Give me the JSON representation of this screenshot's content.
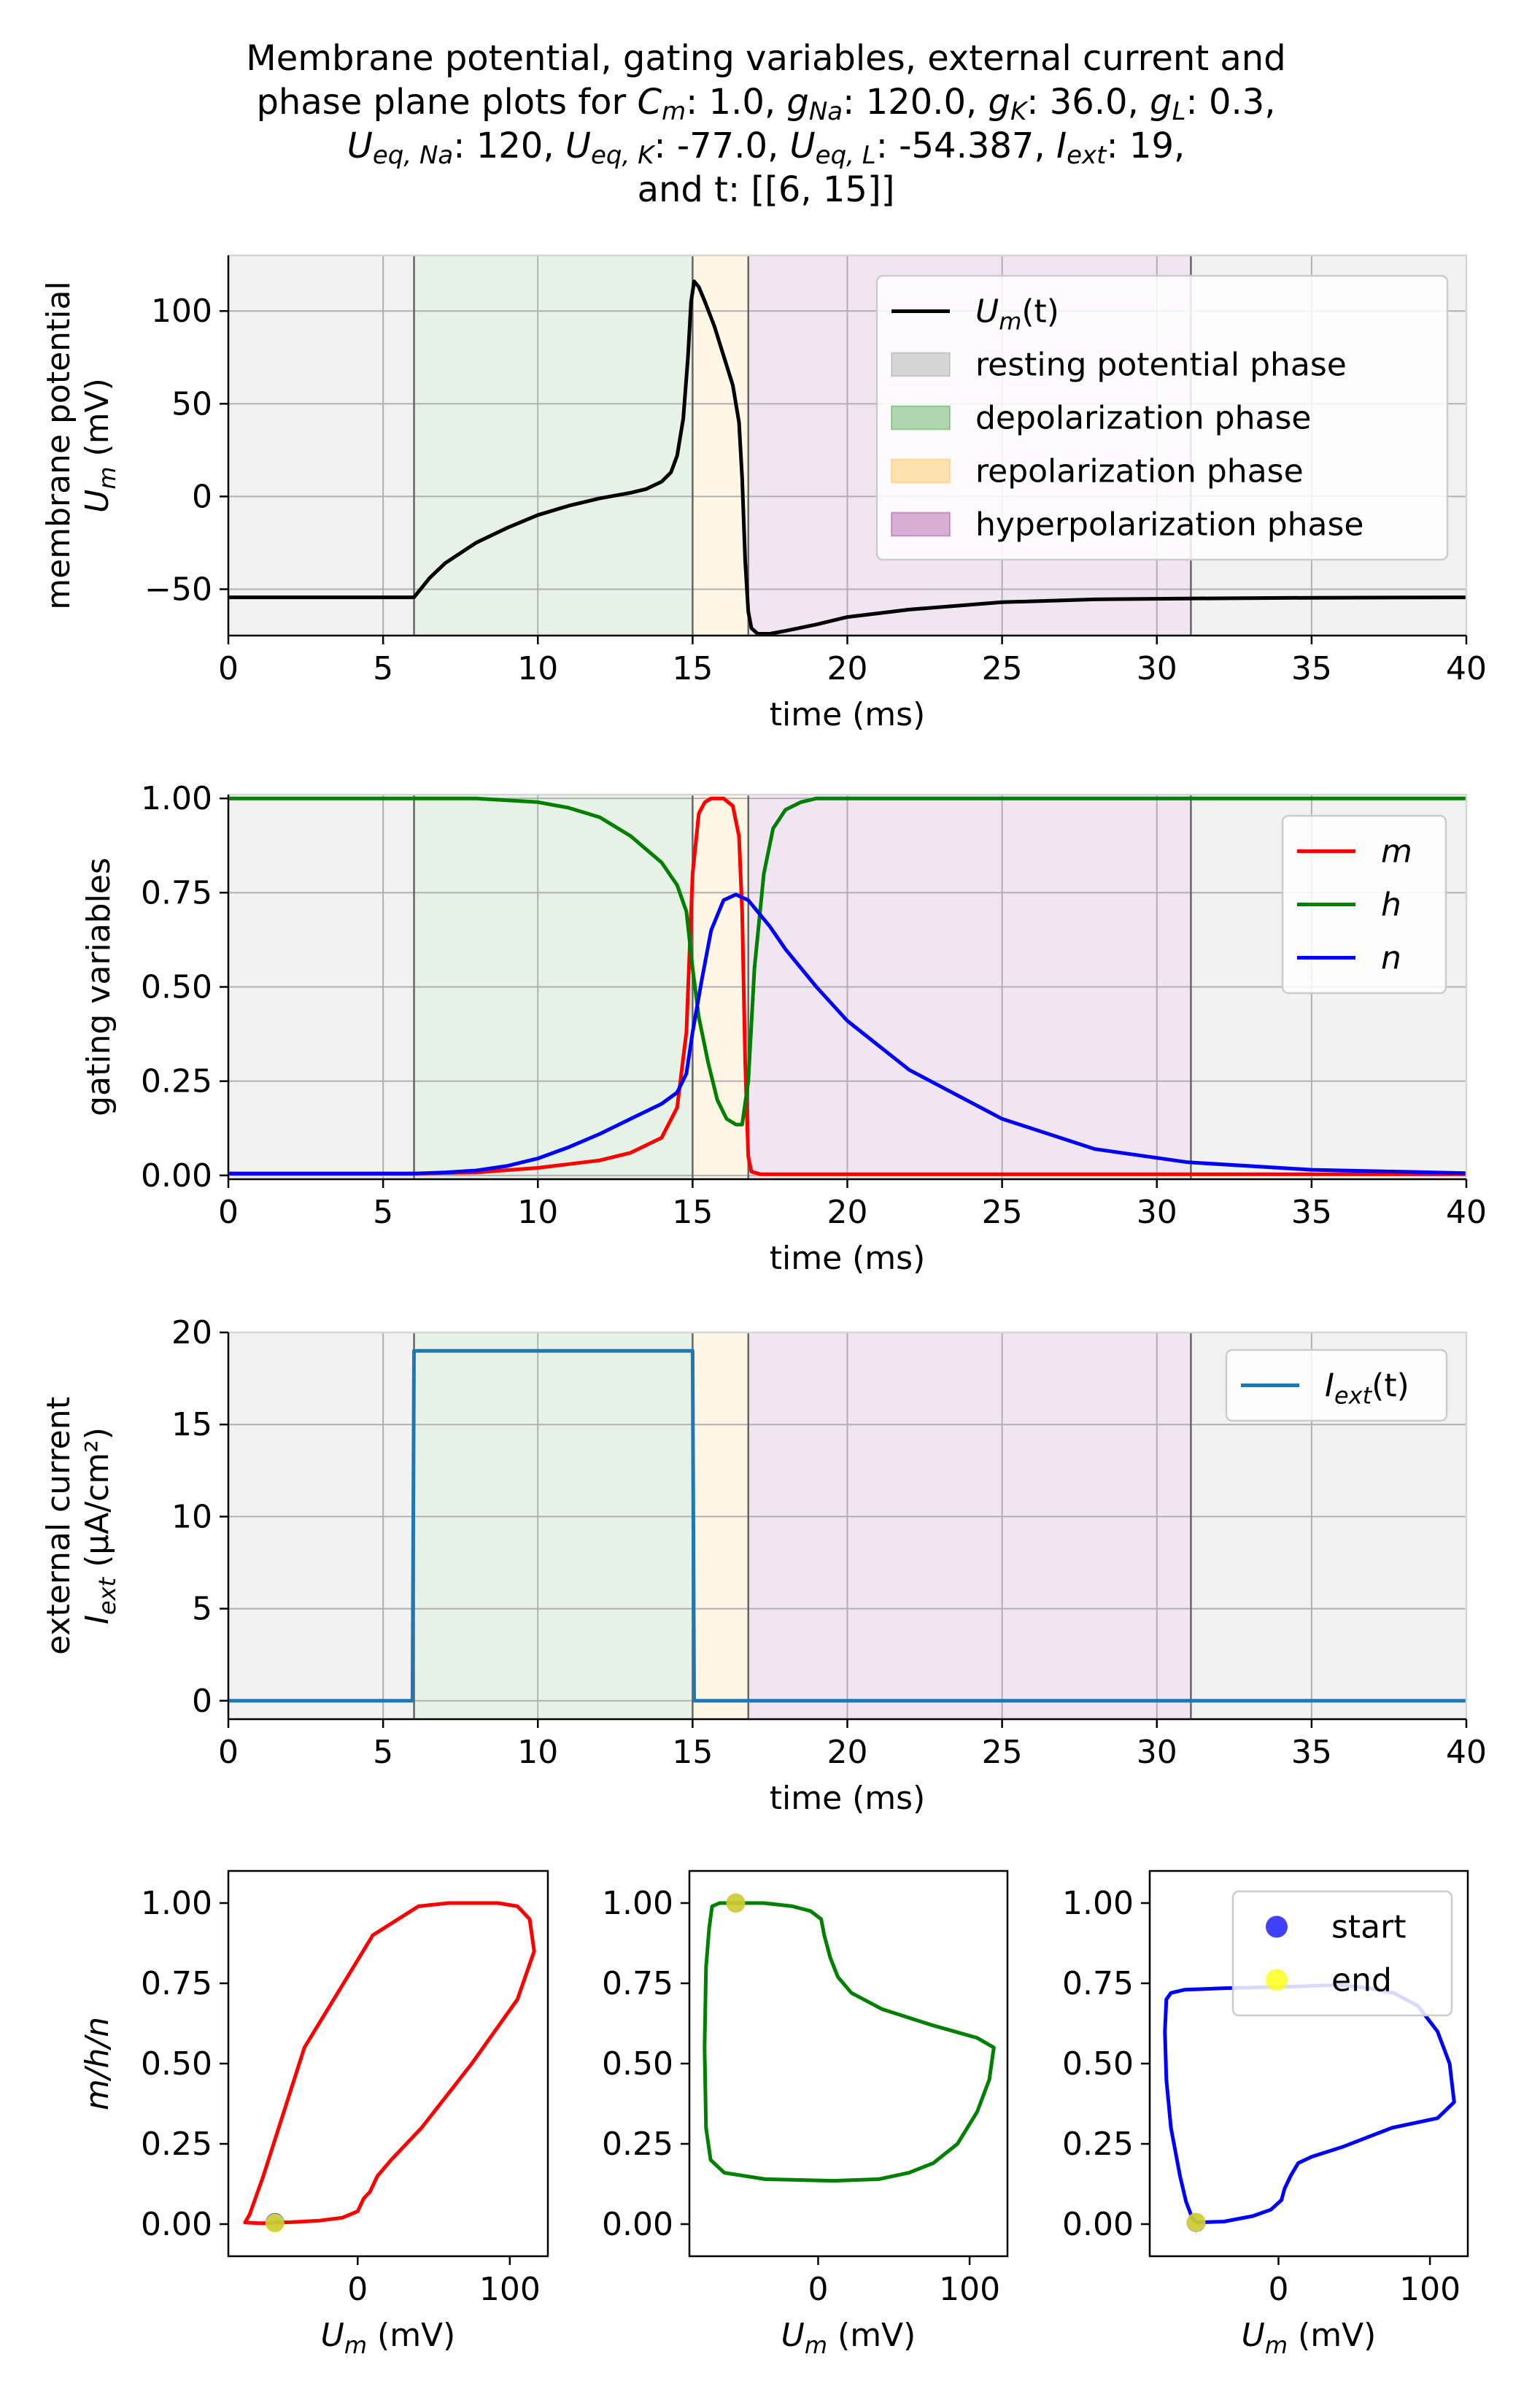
{
  "title": {
    "line1": "Membrane potential, gating variables, external current and",
    "l2a": "phase plane plots for ",
    "cm_sym": "C",
    "cm_sub": "m",
    "cm_val": ": 1.0, ",
    "gna_sym": "g",
    "gna_sub": "Na",
    "gna_val": ": 120.0, ",
    "gk_sym": "g",
    "gk_sub": "K",
    "gk_val": ": 36.0, ",
    "gl_sym": "g",
    "gl_sub": "L",
    "gl_val": ": 0.3,",
    "ueqna_sym": "U",
    "ueqna_sub": "eq, Na",
    "ueqna_val": ": 120, ",
    "ueqk_sym": "U",
    "ueqk_sub": "eq, K",
    "ueqk_val": ": -77.0, ",
    "ueql_sym": "U",
    "ueql_sub": "eq, L",
    "ueql_val": ": -54.387, ",
    "iext_sym": "I",
    "iext_sub": "ext",
    "iext_val": ": 19,",
    "line4": "and t: [[6, 15]]"
  },
  "colors": {
    "resting": "#808080",
    "depolarization": "#008000",
    "repolarization": "#ffa500",
    "hyperpolarization": "#800080",
    "m": "#ff0000",
    "h": "#008000",
    "n": "#0000ff",
    "um": "#000000",
    "iext": "#1f77b4",
    "start": "#0000ff",
    "end": "#ffff00",
    "grid": "#b0b0b0"
  },
  "chart_data": [
    {
      "id": "membrane",
      "type": "line",
      "ylabel_line1": "membrane potential",
      "ylabel_line2": "U",
      "ylabel_line2_sub": "m",
      "ylabel_line2_rest": " (mV)",
      "xlabel": "time (ms)",
      "xlim": [
        0,
        40
      ],
      "ylim": [
        -75,
        130
      ],
      "xticks": [
        0,
        5,
        10,
        15,
        20,
        25,
        30,
        35,
        40
      ],
      "xtick_labels": [
        "0",
        "5",
        "10",
        "15",
        "20",
        "25",
        "30",
        "35",
        "40"
      ],
      "yticks": [
        -50,
        0,
        50,
        100
      ],
      "ytick_labels": [
        "−50",
        "0",
        "50",
        "100"
      ],
      "phases": [
        {
          "name": "resting potential phase",
          "start": 0,
          "end": 6,
          "color": "resting"
        },
        {
          "name": "depolarization phase",
          "start": 6,
          "end": 15,
          "color": "depolarization"
        },
        {
          "name": "repolarization phase",
          "start": 15,
          "end": 16.8,
          "color": "repolarization"
        },
        {
          "name": "hyperpolarization phase",
          "start": 16.8,
          "end": 31.1,
          "color": "hyperpolarization"
        },
        {
          "name": "resting potential phase",
          "start": 31.1,
          "end": 40,
          "color": "resting"
        }
      ],
      "series": [
        {
          "name": "U_m(t)",
          "color": "um",
          "x": [
            0,
            6,
            6.5,
            7,
            8,
            9,
            10,
            11,
            12,
            13,
            13.5,
            14,
            14.3,
            14.5,
            14.7,
            14.85,
            14.95,
            15.05,
            15.2,
            15.4,
            15.7,
            16.0,
            16.3,
            16.5,
            16.6,
            16.7,
            16.8,
            16.9,
            17.1,
            17.5,
            18,
            19,
            20,
            22,
            25,
            28,
            31,
            35,
            40
          ],
          "y": [
            -54.4,
            -54.4,
            -44,
            -36,
            -25,
            -17,
            -10,
            -5,
            -1,
            2,
            4,
            8,
            13,
            22,
            42,
            75,
            105,
            116,
            113,
            105,
            92,
            76,
            60,
            40,
            10,
            -35,
            -62,
            -71,
            -74,
            -74,
            -72.5,
            -69,
            -65,
            -61,
            -57,
            -55.5,
            -55,
            -54.6,
            -54.4
          ]
        }
      ],
      "legend": [
        {
          "label": "U",
          "sub": "m",
          "rest": "(t)",
          "kind": "line",
          "color": "um"
        },
        {
          "label": "resting potential phase",
          "kind": "patch",
          "color": "resting"
        },
        {
          "label": "depolarization phase",
          "kind": "patch",
          "color": "depolarization"
        },
        {
          "label": "repolarization phase",
          "kind": "patch",
          "color": "repolarization"
        },
        {
          "label": "hyperpolarization phase",
          "kind": "patch",
          "color": "hyperpolarization"
        }
      ],
      "legend_position": "top-right"
    },
    {
      "id": "gating",
      "type": "line",
      "ylabel_line1": "gating variables",
      "xlabel": "time (ms)",
      "xlim": [
        0,
        40
      ],
      "ylim": [
        -0.01,
        1.01
      ],
      "xticks": [
        0,
        5,
        10,
        15,
        20,
        25,
        30,
        35,
        40
      ],
      "xtick_labels": [
        "0",
        "5",
        "10",
        "15",
        "20",
        "25",
        "30",
        "35",
        "40"
      ],
      "yticks": [
        0,
        0.25,
        0.5,
        0.75,
        1.0
      ],
      "ytick_labels": [
        "0.00",
        "0.25",
        "0.50",
        "0.75",
        "1.00"
      ],
      "series": [
        {
          "name": "m",
          "color": "m",
          "x": [
            0,
            6,
            8,
            10,
            12,
            13,
            14,
            14.5,
            14.8,
            15.0,
            15.2,
            15.4,
            15.6,
            15.8,
            16.0,
            16.3,
            16.5,
            16.6,
            16.7,
            16.8,
            16.9,
            17.2,
            20,
            40
          ],
          "y": [
            0.005,
            0.005,
            0.008,
            0.02,
            0.04,
            0.06,
            0.1,
            0.18,
            0.38,
            0.8,
            0.96,
            0.99,
            1.0,
            1.0,
            1.0,
            0.98,
            0.9,
            0.7,
            0.3,
            0.05,
            0.01,
            0.003,
            0.003,
            0.003
          ]
        },
        {
          "name": "h",
          "color": "h",
          "x": [
            0,
            6,
            8,
            10,
            11,
            12,
            13,
            14,
            14.5,
            14.8,
            15.0,
            15.2,
            15.5,
            15.8,
            16.1,
            16.4,
            16.6,
            16.8,
            17.0,
            17.3,
            17.6,
            18.0,
            18.5,
            19,
            20,
            40
          ],
          "y": [
            1.0,
            1.0,
            1.0,
            0.99,
            0.975,
            0.95,
            0.9,
            0.83,
            0.77,
            0.7,
            0.55,
            0.42,
            0.3,
            0.2,
            0.15,
            0.135,
            0.135,
            0.25,
            0.55,
            0.8,
            0.92,
            0.97,
            0.99,
            1.0,
            1.0,
            1.0
          ]
        },
        {
          "name": "n",
          "color": "n",
          "x": [
            0,
            6,
            7,
            8,
            9,
            10,
            11,
            12,
            13,
            14,
            14.5,
            14.8,
            15.0,
            15.3,
            15.6,
            16.0,
            16.4,
            16.8,
            17.5,
            18,
            19,
            20,
            22,
            25,
            28,
            31,
            35,
            40
          ],
          "y": [
            0.005,
            0.005,
            0.008,
            0.013,
            0.025,
            0.045,
            0.075,
            0.11,
            0.15,
            0.19,
            0.22,
            0.27,
            0.38,
            0.52,
            0.65,
            0.73,
            0.745,
            0.73,
            0.66,
            0.6,
            0.5,
            0.41,
            0.28,
            0.15,
            0.07,
            0.035,
            0.015,
            0.006
          ]
        }
      ],
      "legend": [
        {
          "label": "m",
          "kind": "line",
          "color": "m",
          "italic": true
        },
        {
          "label": "h",
          "kind": "line",
          "color": "h",
          "italic": true
        },
        {
          "label": "n",
          "kind": "line",
          "color": "n",
          "italic": true
        }
      ],
      "legend_position": "top-right"
    },
    {
      "id": "current",
      "type": "line",
      "ylabel_line1": "external current",
      "ylabel_line2": "I",
      "ylabel_line2_sub": "ext",
      "ylabel_line2_rest": " (μA/cm²)",
      "xlabel": "time (ms)",
      "xlim": [
        0,
        40
      ],
      "ylim": [
        -1,
        20
      ],
      "xticks": [
        0,
        5,
        10,
        15,
        20,
        25,
        30,
        35,
        40
      ],
      "xtick_labels": [
        "0",
        "5",
        "10",
        "15",
        "20",
        "25",
        "30",
        "35",
        "40"
      ],
      "yticks": [
        0,
        5,
        10,
        15,
        20
      ],
      "ytick_labels": [
        "0",
        "5",
        "10",
        "15",
        "20"
      ],
      "series": [
        {
          "name": "I_ext(t)",
          "color": "iext",
          "x": [
            0,
            5.95,
            6.0,
            15.0,
            15.05,
            40
          ],
          "y": [
            0,
            0,
            19,
            19,
            0,
            0
          ]
        }
      ],
      "legend": [
        {
          "label": "I",
          "sub": "ext",
          "rest": "(t)",
          "kind": "line",
          "color": "iext"
        }
      ],
      "legend_position": "top-right"
    },
    {
      "id": "phase_m",
      "type": "line",
      "ylabel": "m/h/n",
      "xlabel_sym": "U",
      "xlabel_sub": "m",
      "xlabel_rest": " (mV)",
      "xlim": [
        -85,
        125
      ],
      "ylim": [
        -0.1,
        1.1
      ],
      "xticks": [
        0,
        100
      ],
      "xtick_labels": [
        "0",
        "100"
      ],
      "yticks": [
        0,
        0.25,
        0.5,
        0.75,
        1.0
      ],
      "ytick_labels": [
        "0.00",
        "0.25",
        "0.50",
        "0.75",
        "1.00"
      ],
      "series": [
        {
          "name": "m",
          "color": "m",
          "x": [
            -54.4,
            -44,
            -25,
            -10,
            0,
            4,
            8,
            13,
            22,
            42,
            75,
            105,
            116,
            113,
            105,
            92,
            76,
            60,
            40,
            10,
            -35,
            -62,
            -71,
            -74,
            -65,
            -57,
            -54.4
          ],
          "y": [
            0.005,
            0.006,
            0.011,
            0.02,
            0.04,
            0.08,
            0.1,
            0.15,
            0.2,
            0.3,
            0.5,
            0.7,
            0.85,
            0.95,
            0.99,
            1.0,
            1.0,
            1.0,
            0.99,
            0.9,
            0.55,
            0.15,
            0.03,
            0.005,
            0.003,
            0.003,
            0.003
          ]
        }
      ],
      "start": {
        "x": -54.4,
        "y": 0.005
      },
      "end": {
        "x": -54.4,
        "y": 0.003
      }
    },
    {
      "id": "phase_h",
      "type": "line",
      "xlabel_sym": "U",
      "xlabel_sub": "m",
      "xlabel_rest": " (mV)",
      "xlim": [
        -85,
        125
      ],
      "ylim": [
        -0.1,
        1.1
      ],
      "xticks": [
        0,
        100
      ],
      "xtick_labels": [
        "0",
        "100"
      ],
      "yticks": [
        0,
        0.25,
        0.5,
        0.75,
        1.0
      ],
      "ytick_labels": [
        "0.00",
        "0.25",
        "0.50",
        "0.75",
        "1.00"
      ],
      "series": [
        {
          "name": "h",
          "color": "h",
          "x": [
            -54.4,
            -36,
            -17,
            -5,
            2,
            4,
            8,
            13,
            22,
            42,
            75,
            105,
            116,
            113,
            105,
            92,
            76,
            60,
            40,
            10,
            -35,
            -62,
            -71,
            -74,
            -75,
            -74,
            -72,
            -70,
            -65,
            -57,
            -54.4
          ],
          "y": [
            1.0,
            1.0,
            0.99,
            0.975,
            0.95,
            0.9,
            0.83,
            0.77,
            0.72,
            0.67,
            0.62,
            0.58,
            0.55,
            0.45,
            0.35,
            0.25,
            0.19,
            0.16,
            0.14,
            0.135,
            0.14,
            0.16,
            0.2,
            0.3,
            0.55,
            0.8,
            0.92,
            0.99,
            1.0,
            1.0,
            1.0
          ]
        }
      ],
      "start": {
        "x": -54.4,
        "y": 1.0
      },
      "end": {
        "x": -54.4,
        "y": 1.0
      }
    },
    {
      "id": "phase_n",
      "type": "line",
      "xlabel_sym": "U",
      "xlabel_sub": "m",
      "xlabel_rest": " (mV)",
      "xlim": [
        -85,
        125
      ],
      "ylim": [
        -0.1,
        1.1
      ],
      "xticks": [
        0,
        100
      ],
      "xtick_labels": [
        "0",
        "100"
      ],
      "yticks": [
        0,
        0.25,
        0.5,
        0.75,
        1.0
      ],
      "ytick_labels": [
        "0.00",
        "0.25",
        "0.50",
        "0.75",
        "1.00"
      ],
      "series": [
        {
          "name": "n",
          "color": "n",
          "x": [
            -54.4,
            -36,
            -17,
            -5,
            2,
            4,
            8,
            13,
            22,
            42,
            75,
            105,
            116,
            113,
            105,
            92,
            76,
            60,
            40,
            10,
            -35,
            -62,
            -71,
            -74,
            -75,
            -74,
            -71,
            -65,
            -61,
            -57,
            -54.4
          ],
          "y": [
            0.005,
            0.008,
            0.025,
            0.045,
            0.075,
            0.11,
            0.15,
            0.19,
            0.21,
            0.24,
            0.3,
            0.33,
            0.38,
            0.5,
            0.6,
            0.68,
            0.72,
            0.735,
            0.745,
            0.74,
            0.735,
            0.73,
            0.72,
            0.7,
            0.6,
            0.45,
            0.3,
            0.15,
            0.07,
            0.02,
            0.006
          ]
        }
      ],
      "start": {
        "x": -54.4,
        "y": 0.005
      },
      "end": {
        "x": -54.4,
        "y": 0.006
      },
      "legend": [
        {
          "label": "start",
          "kind": "dot",
          "color": "start"
        },
        {
          "label": "end",
          "kind": "dot",
          "color": "end"
        }
      ],
      "legend_position": "top-right"
    }
  ]
}
